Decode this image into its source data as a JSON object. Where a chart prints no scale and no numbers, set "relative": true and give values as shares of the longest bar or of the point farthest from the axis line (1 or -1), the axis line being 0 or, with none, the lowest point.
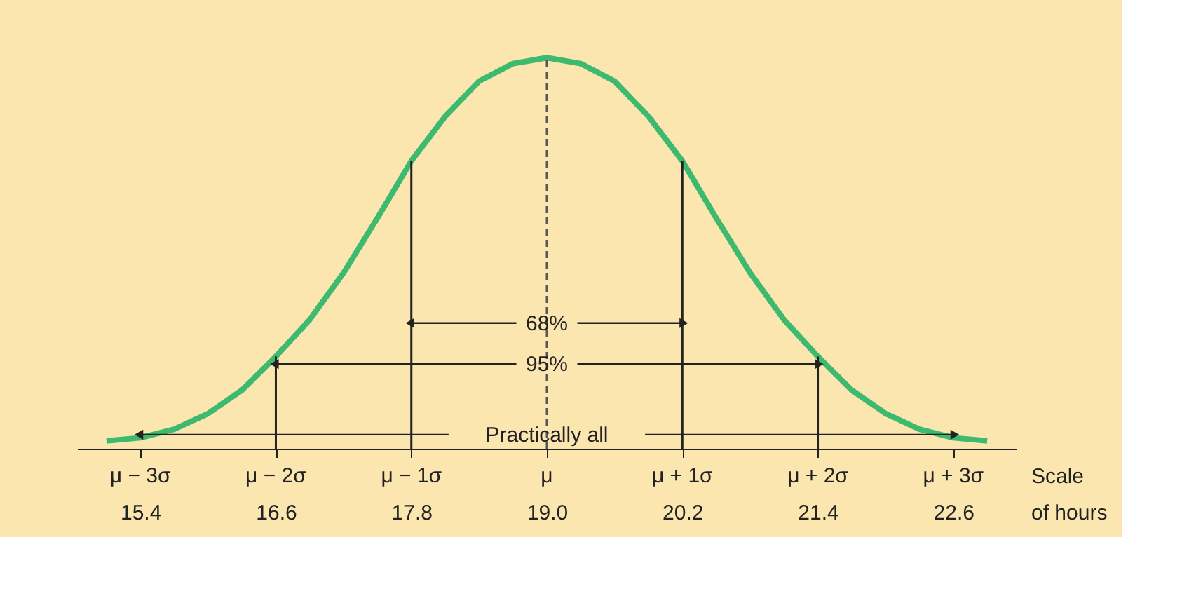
{
  "chart_data": {
    "type": "line",
    "relative": true,
    "xlabel": "Scale of hours",
    "x": [
      15.1,
      15.4,
      15.7,
      16.0,
      16.3,
      16.6,
      16.9,
      17.2,
      17.5,
      17.8,
      18.1,
      18.4,
      18.7,
      19.0,
      19.3,
      19.6,
      19.9,
      20.2,
      20.5,
      20.8,
      21.1,
      21.4,
      21.7,
      22.0,
      22.3,
      22.6,
      22.9
    ],
    "series": [
      {
        "color": "#3dba6f",
        "values": [
          0.02,
          0.028,
          0.05,
          0.09,
          0.15,
          0.236,
          0.33,
          0.45,
          0.59,
          0.736,
          0.85,
          0.94,
          0.985,
          1,
          0.985,
          0.94,
          0.85,
          0.736,
          0.59,
          0.45,
          0.33,
          0.236,
          0.15,
          0.09,
          0.05,
          0.028,
          0.02
        ]
      }
    ],
    "xlim": [
      14.84,
      23.16
    ],
    "xticks": [
      15.4,
      16.6,
      17.8,
      {
        "value": 19.0,
        "label": "19.0"
      },
      20.2,
      21.4,
      22.6
    ],
    "ref_lines": [
      {
        "axis": "x",
        "value": 16.6
      },
      {
        "axis": "x",
        "value": 17.8
      },
      {
        "axis": "x",
        "value": 19.0,
        "line_style": "dashed"
      },
      {
        "axis": "x",
        "value": 20.2
      },
      {
        "axis": "x",
        "value": 21.4
      }
    ],
    "annotations": [
      "68%",
      "95%",
      "Practically all",
      "μ − 3σ",
      "μ − 2σ",
      "μ − 1σ",
      "μ",
      "μ + 1σ",
      "μ + 2σ",
      "μ + 3σ"
    ],
    "grid": false,
    "marker": "none",
    "line_style": "solid"
  }
}
